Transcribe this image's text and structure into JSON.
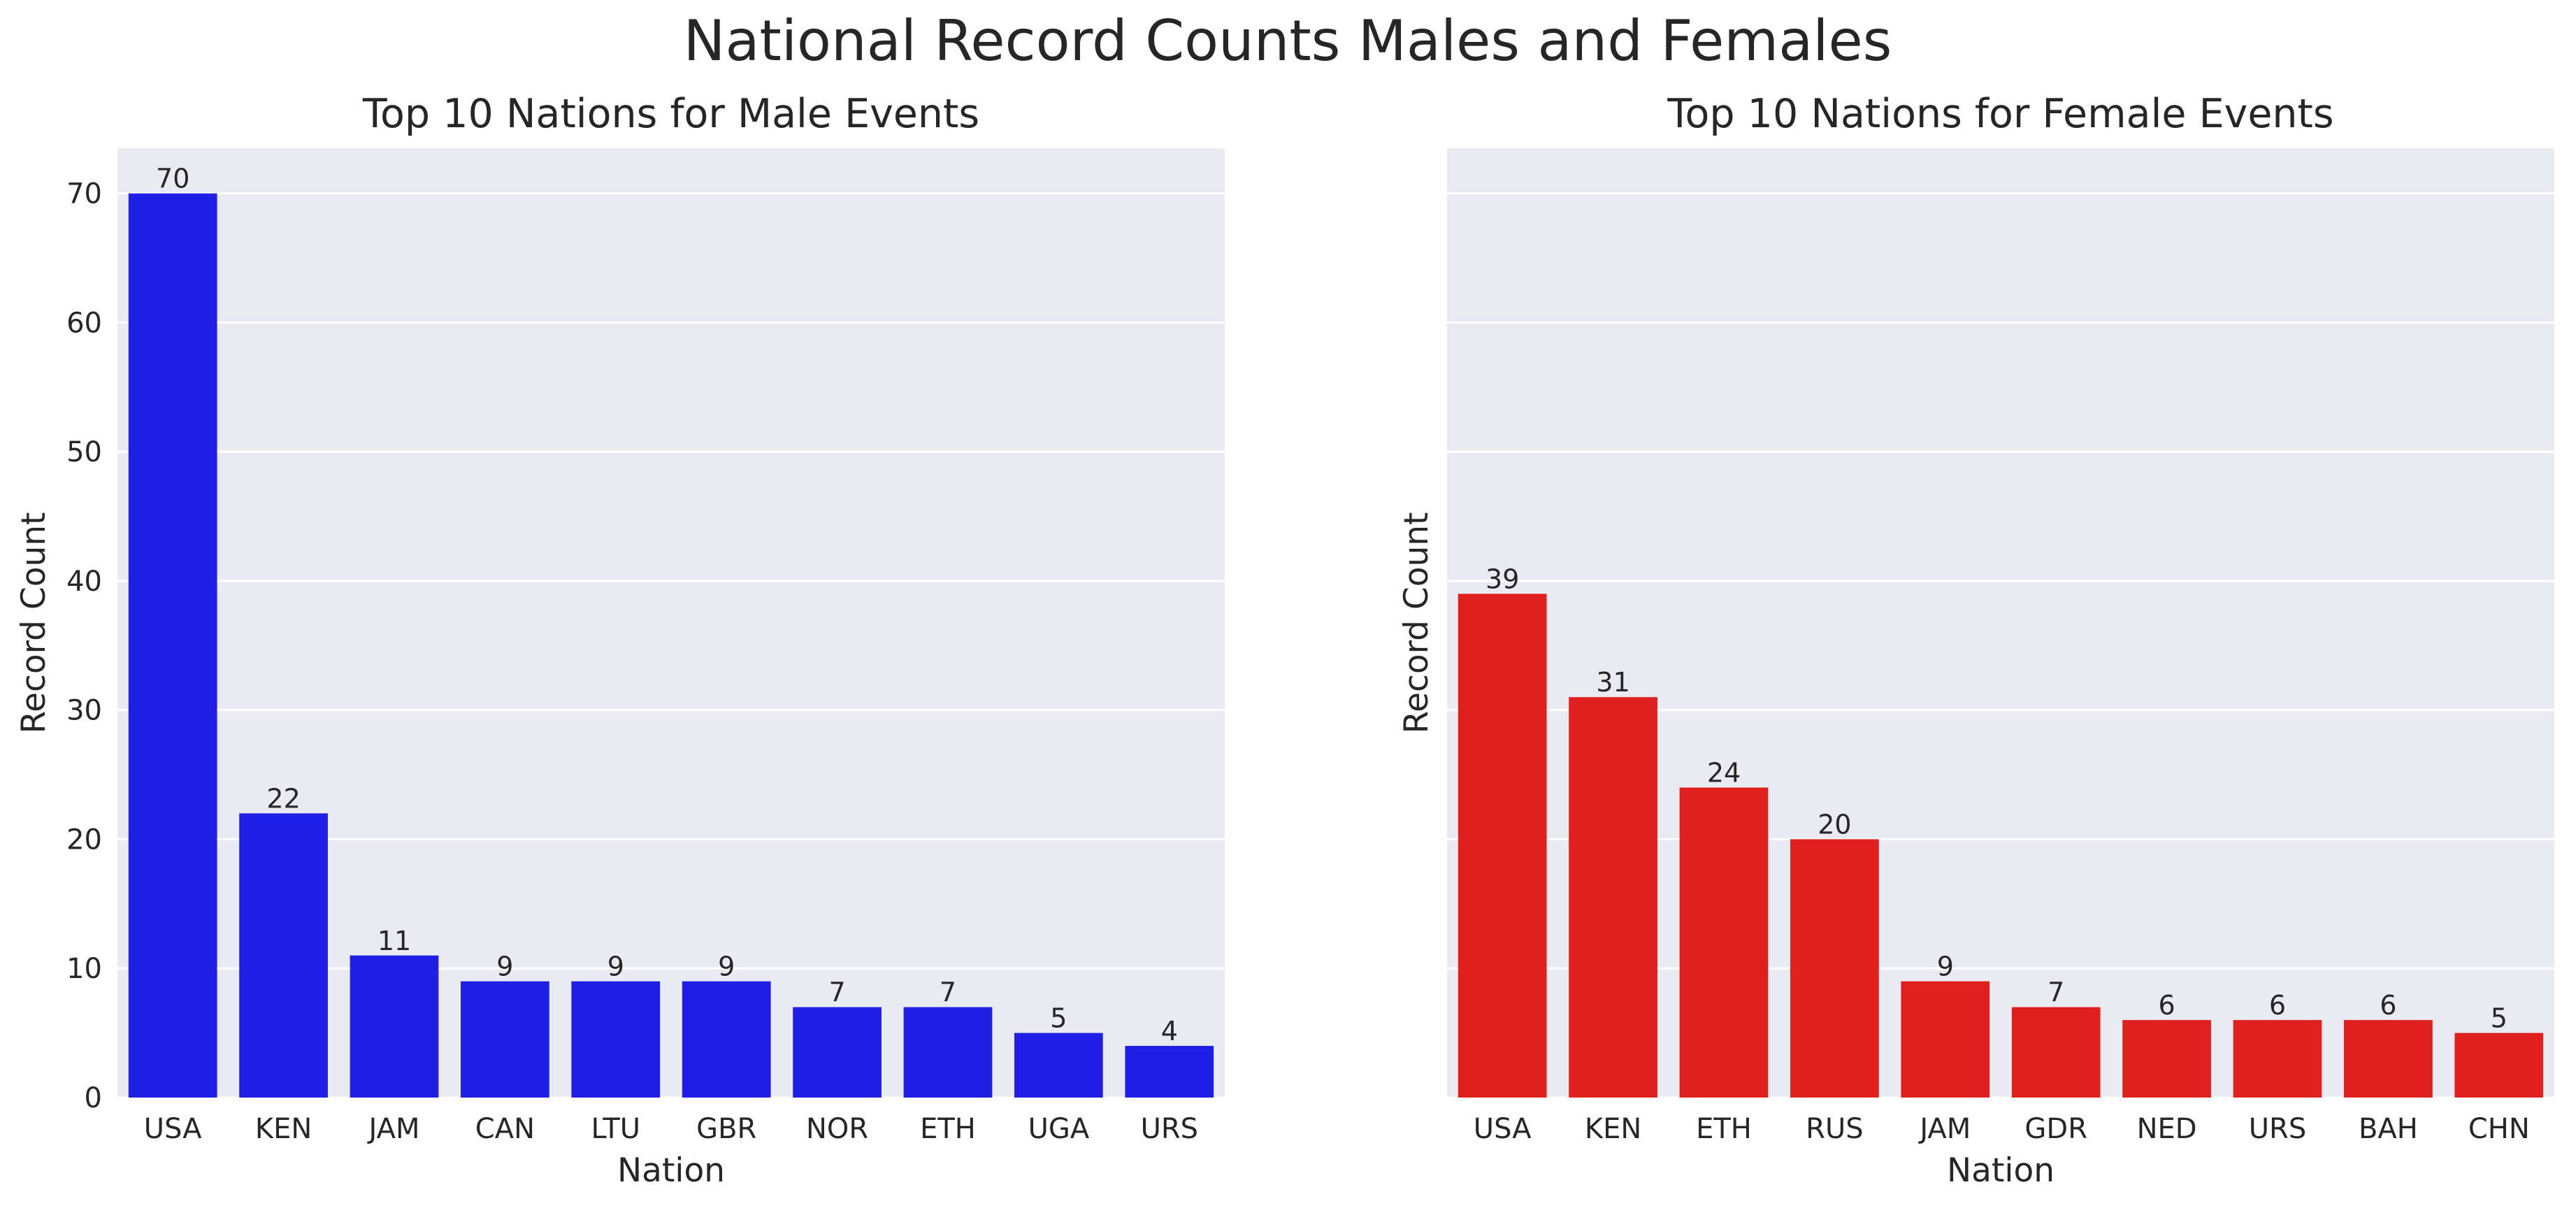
{
  "figure_title": "National Record Counts Males and Females",
  "chart_data": [
    {
      "type": "bar",
      "title": "Top 10 Nations for Male Events",
      "xlabel": "Nation",
      "ylabel": "Record Count",
      "categories": [
        "USA",
        "KEN",
        "JAM",
        "CAN",
        "LTU",
        "GBR",
        "NOR",
        "ETH",
        "UGA",
        "URS"
      ],
      "values": [
        70,
        22,
        11,
        9,
        9,
        9,
        7,
        7,
        5,
        4
      ],
      "ylim": [
        0,
        73.5
      ],
      "yticks": [
        0,
        10,
        20,
        30,
        40,
        50,
        60,
        70
      ],
      "color": "#1f1fe6",
      "grid": true,
      "background": "#eaeaf2"
    },
    {
      "type": "bar",
      "title": "Top 10 Nations for Female Events",
      "xlabel": "Nation",
      "ylabel": "Record Count",
      "categories": [
        "USA",
        "KEN",
        "ETH",
        "RUS",
        "JAM",
        "GDR",
        "NED",
        "URS",
        "BAH",
        "CHN"
      ],
      "values": [
        39,
        31,
        24,
        20,
        9,
        7,
        6,
        6,
        6,
        5
      ],
      "ylim": [
        0,
        73.5
      ],
      "yticks": [
        0,
        10,
        20,
        30,
        40,
        50,
        60,
        70
      ],
      "show_ytick_labels": false,
      "color": "#e01f1f",
      "grid": true,
      "background": "#eaeaf2"
    }
  ]
}
